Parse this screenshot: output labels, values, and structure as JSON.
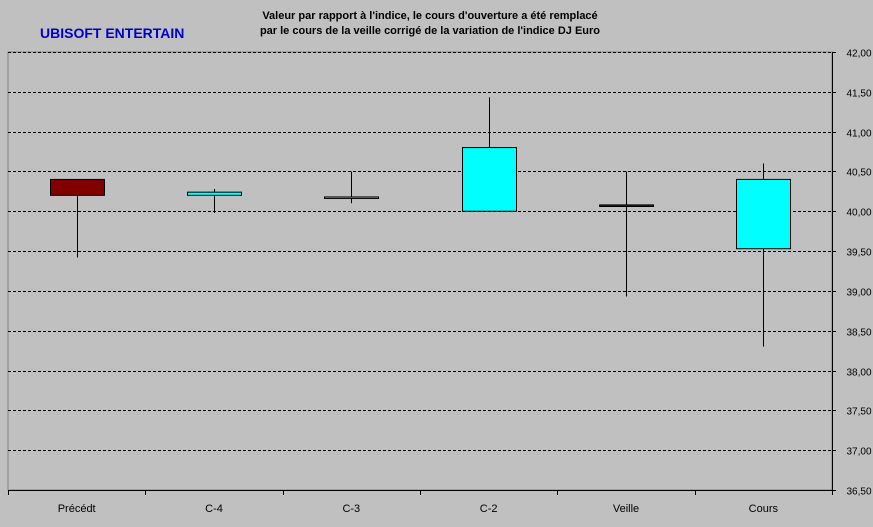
{
  "header": {
    "title": "UBISOFT ENTERTAIN",
    "subtitle_line1": "Valeur par rapport à l'indice, le cours d'ouverture a été remplacé",
    "subtitle_line2": "par le cours de la veille corrigé de la variation de l'indice DJ Euro"
  },
  "chart_data": {
    "type": "candlestick",
    "title": "UBISOFT ENTERTAIN",
    "subtitle": "Valeur par rapport à l'indice, le cours d'ouverture a été remplacé par le cours de la veille corrigé de la variation de l'indice DJ Euro",
    "categories": [
      "Précédt",
      "C-4",
      "C-3",
      "C-2",
      "Veille",
      "Cours"
    ],
    "candles": [
      {
        "open": 40.4,
        "high": 40.4,
        "low": 39.42,
        "close": 40.2
      },
      {
        "open": 40.2,
        "high": 40.28,
        "low": 39.98,
        "close": 40.24
      },
      {
        "open": 40.18,
        "high": 40.5,
        "low": 40.1,
        "close": 40.18
      },
      {
        "open": 40.0,
        "high": 41.43,
        "low": 40.0,
        "close": 40.8
      },
      {
        "open": 40.08,
        "high": 40.5,
        "low": 38.93,
        "close": 40.06
      },
      {
        "open": 39.53,
        "high": 40.6,
        "low": 38.3,
        "close": 40.4
      }
    ],
    "ylim": [
      36.5,
      42.0
    ],
    "yticks": [
      "42,00",
      "41,50",
      "41,00",
      "40,50",
      "40,00",
      "39,50",
      "39,00",
      "38,50",
      "38,00",
      "37,50",
      "37,00",
      "36,50"
    ],
    "ytick_values": [
      42.0,
      41.5,
      41.0,
      40.5,
      40.0,
      39.5,
      39.0,
      38.5,
      38.0,
      37.5,
      37.0,
      36.5
    ],
    "grid": true,
    "colors": {
      "background": "#c0c0c0",
      "up": "#00ffff",
      "down": "#800000",
      "wick": "#000000",
      "grid": "#000000",
      "title": "#0000cc"
    }
  }
}
